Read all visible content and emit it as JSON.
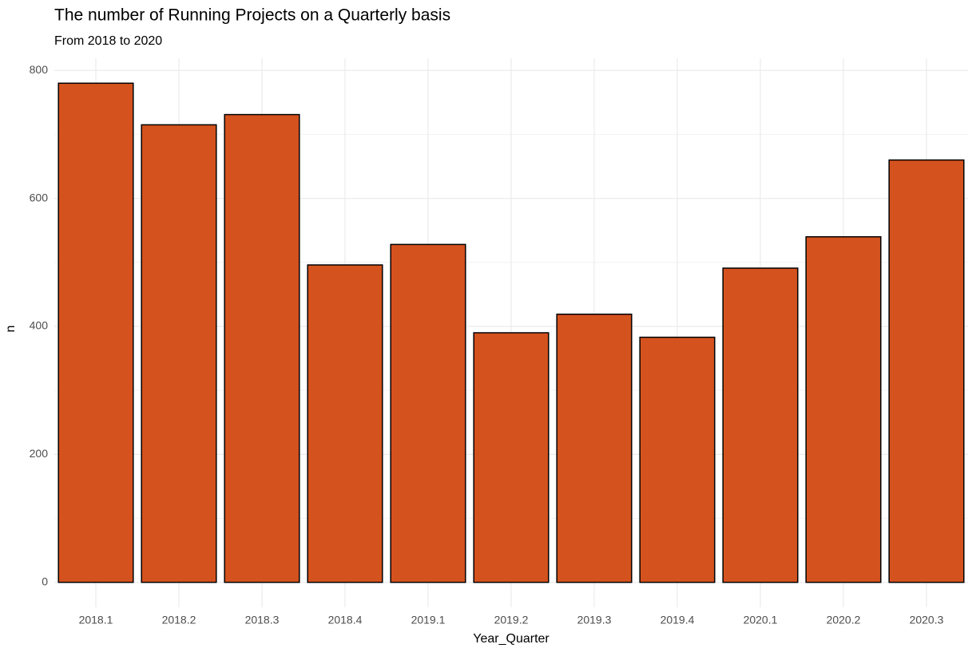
{
  "chart_data": {
    "type": "bar",
    "title": "The number of Running Projects on a Quarterly basis",
    "subtitle": "From 2018 to 2020",
    "x_label": "Year_Quarter",
    "y_label": "n",
    "categories": [
      "2018.1",
      "2018.2",
      "2018.3",
      "2018.4",
      "2019.1",
      "2019.2",
      "2019.3",
      "2019.4",
      "2020.1",
      "2020.2",
      "2020.3"
    ],
    "values": [
      780,
      715,
      731,
      496,
      528,
      390,
      419,
      383,
      491,
      540,
      660
    ],
    "color": "#d4521e",
    "edge_color": "#000000",
    "ylim": [
      -39,
      819
    ],
    "yticks": [
      0,
      200,
      400,
      600,
      800
    ],
    "grid": true
  }
}
